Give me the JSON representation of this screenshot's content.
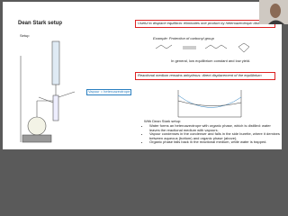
{
  "slide": {
    "title": "Dean Stark setup",
    "setup_label": "Setup",
    "box1": "Useful to displace equilibria: eliminates one product by heteroazeotropic distillation",
    "example": "Example: Protection of carbonyl group",
    "general": "In general, low equilibrium constant and low yield.",
    "box2": "Reactional medium remains anhydrous: direct displacement of the equilibrium",
    "vapour_label": "Vapour = heteroazeotrope",
    "with_label": "With Dean Stark setup:",
    "bullets": [
      "Water forms an heteroazeotrope with organic phase, which is distilled: water leaves the reactional medium with vapours.",
      "Vapour condenses in the condenser and falls in the side burette, where it demixes between aqueous (bottom) and organic phase (above).",
      "Organic phase falls back in the reactional medium, while water is trapped."
    ]
  }
}
